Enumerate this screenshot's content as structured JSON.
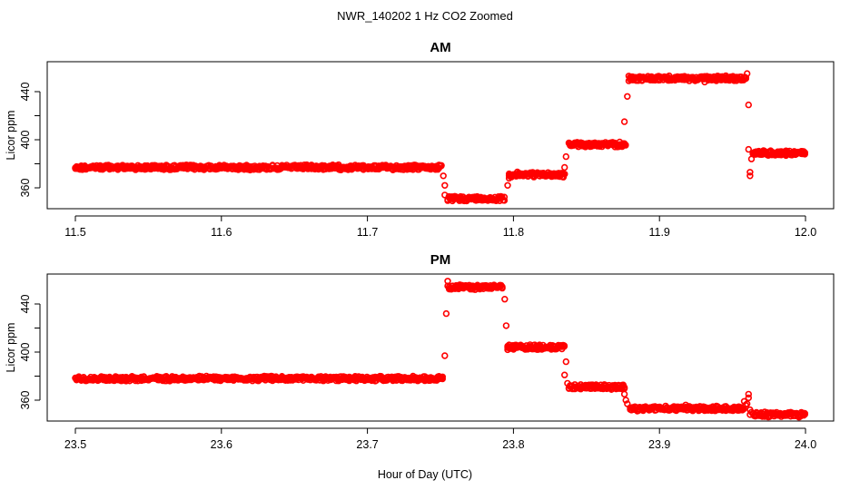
{
  "figure": {
    "title": "NWR_140202  1 Hz CO2 Zoomed",
    "xlabel": "Hour of Day (UTC)"
  },
  "chart_data": [
    {
      "type": "scatter",
      "title": "AM",
      "ylabel": "Licor ppm",
      "xlim": [
        11.5,
        12.0
      ],
      "ylim": [
        345,
        465
      ],
      "x_ticks": [
        "11.5",
        "11.6",
        "11.7",
        "11.8",
        "11.9",
        "12.0"
      ],
      "y_ticks": [
        "360",
        "400",
        "440"
      ],
      "marker": "open-circle",
      "color": "#ff0000",
      "segments": [
        {
          "x_start": 11.5,
          "x_end": 11.751,
          "y": 377
        },
        {
          "x_start": 11.755,
          "x_end": 11.794,
          "y": 351
        },
        {
          "x_start": 11.797,
          "x_end": 11.835,
          "y": 371
        },
        {
          "x_start": 11.838,
          "x_end": 11.877,
          "y": 396
        },
        {
          "x_start": 11.88,
          "x_end": 11.96,
          "y": 451
        },
        {
          "x_start": 11.964,
          "x_end": 12.0,
          "y": 389
        }
      ],
      "transitions": [
        {
          "x": 11.752,
          "y": 370
        },
        {
          "x": 11.753,
          "y": 362
        },
        {
          "x": 11.753,
          "y": 354
        },
        {
          "x": 11.796,
          "y": 362
        },
        {
          "x": 11.797,
          "y": 368
        },
        {
          "x": 11.835,
          "y": 377
        },
        {
          "x": 11.836,
          "y": 386
        },
        {
          "x": 11.876,
          "y": 415
        },
        {
          "x": 11.878,
          "y": 436
        },
        {
          "x": 11.879,
          "y": 449
        },
        {
          "x": 11.879,
          "y": 453
        },
        {
          "x": 11.96,
          "y": 455
        },
        {
          "x": 11.961,
          "y": 429
        },
        {
          "x": 11.961,
          "y": 392
        },
        {
          "x": 11.962,
          "y": 370
        },
        {
          "x": 11.962,
          "y": 373
        },
        {
          "x": 11.963,
          "y": 384
        },
        {
          "x": 11.931,
          "y": 448
        }
      ]
    },
    {
      "type": "scatter",
      "title": "PM",
      "ylabel": "Licor ppm",
      "xlim": [
        23.5,
        24.0
      ],
      "ylim": [
        345,
        465
      ],
      "x_ticks": [
        "23.5",
        "23.6",
        "23.7",
        "23.8",
        "23.9",
        "24.0"
      ],
      "y_ticks": [
        "360",
        "400",
        "440"
      ],
      "marker": "open-circle",
      "color": "#ff0000",
      "segments": [
        {
          "x_start": 23.5,
          "x_end": 23.752,
          "y": 378
        },
        {
          "x_start": 23.756,
          "x_end": 23.793,
          "y": 454
        },
        {
          "x_start": 23.796,
          "x_end": 23.835,
          "y": 404
        },
        {
          "x_start": 23.838,
          "x_end": 23.876,
          "y": 371
        },
        {
          "x_start": 23.88,
          "x_end": 23.958,
          "y": 353
        },
        {
          "x_start": 23.964,
          "x_end": 24.0,
          "y": 348
        }
      ],
      "transitions": [
        {
          "x": 23.753,
          "y": 397
        },
        {
          "x": 23.754,
          "y": 432
        },
        {
          "x": 23.755,
          "y": 459
        },
        {
          "x": 23.755,
          "y": 455
        },
        {
          "x": 23.794,
          "y": 444
        },
        {
          "x": 23.795,
          "y": 422
        },
        {
          "x": 23.796,
          "y": 402
        },
        {
          "x": 23.797,
          "y": 406
        },
        {
          "x": 23.835,
          "y": 381
        },
        {
          "x": 23.836,
          "y": 392
        },
        {
          "x": 23.837,
          "y": 374
        },
        {
          "x": 23.876,
          "y": 365
        },
        {
          "x": 23.877,
          "y": 360
        },
        {
          "x": 23.878,
          "y": 357
        },
        {
          "x": 23.958,
          "y": 359
        },
        {
          "x": 23.959,
          "y": 356
        },
        {
          "x": 23.96,
          "y": 357
        },
        {
          "x": 23.961,
          "y": 362
        },
        {
          "x": 23.961,
          "y": 365
        },
        {
          "x": 23.962,
          "y": 352
        },
        {
          "x": 23.963,
          "y": 350
        },
        {
          "x": 23.962,
          "y": 348
        },
        {
          "x": 23.918,
          "y": 356
        }
      ]
    }
  ]
}
